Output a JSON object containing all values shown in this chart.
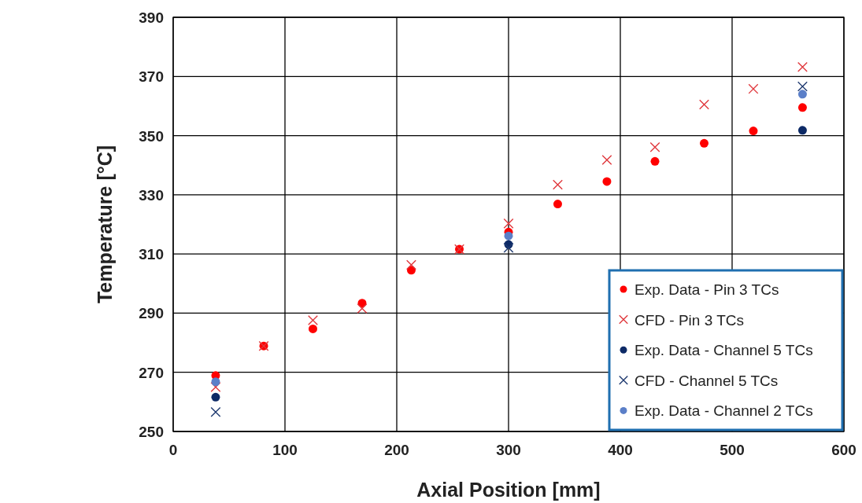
{
  "chart_data": {
    "type": "scatter",
    "xlabel": "Axial Position [mm]",
    "ylabel": "Temperature [°C]",
    "xlim": [
      0,
      600
    ],
    "xticks": [
      0,
      100,
      200,
      300,
      400,
      500,
      600
    ],
    "ylim": [
      250,
      390
    ],
    "yticks": [
      250,
      270,
      290,
      310,
      330,
      350,
      370,
      390
    ],
    "grid": true,
    "legend": "bottom right",
    "series": [
      {
        "name": "Exp. Data - Pin 3 TCs",
        "color": "#ff0000",
        "marker": "circle",
        "x": [
          38,
          81,
          125,
          169,
          213,
          256,
          300,
          344,
          388,
          431,
          475,
          519,
          563
        ],
        "values": [
          268.9,
          278.9,
          284.7,
          293.4,
          304.5,
          311.6,
          317.4,
          326.9,
          334.5,
          341.3,
          347.4,
          351.6,
          359.5
        ]
      },
      {
        "name": "CFD - Pin 3 TCs",
        "color": "#e0393e",
        "marker": "cross",
        "x": [
          38,
          81,
          125,
          169,
          213,
          256,
          300,
          344,
          388,
          431,
          475,
          519,
          563
        ],
        "values": [
          265.0,
          278.9,
          287.6,
          291.6,
          306.3,
          311.6,
          320.3,
          333.4,
          341.8,
          346.1,
          360.5,
          365.8,
          373.2
        ]
      },
      {
        "name": "Exp. Data - Channel 5 TCs",
        "color": "#0d2a66",
        "marker": "circle",
        "x": [
          38,
          300,
          563
        ],
        "values": [
          261.6,
          313.2,
          351.8
        ]
      },
      {
        "name": "CFD - Channel 5 TCs",
        "color": "#1f3a70",
        "marker": "cross",
        "x": [
          38,
          300,
          563
        ],
        "values": [
          256.6,
          312.1,
          366.6
        ]
      },
      {
        "name": "Exp. Data - Channel 2 TCs",
        "color": "#5b7fc8",
        "marker": "circle",
        "x": [
          38,
          300,
          563
        ],
        "values": [
          266.8,
          316.1,
          364.0
        ]
      }
    ]
  }
}
